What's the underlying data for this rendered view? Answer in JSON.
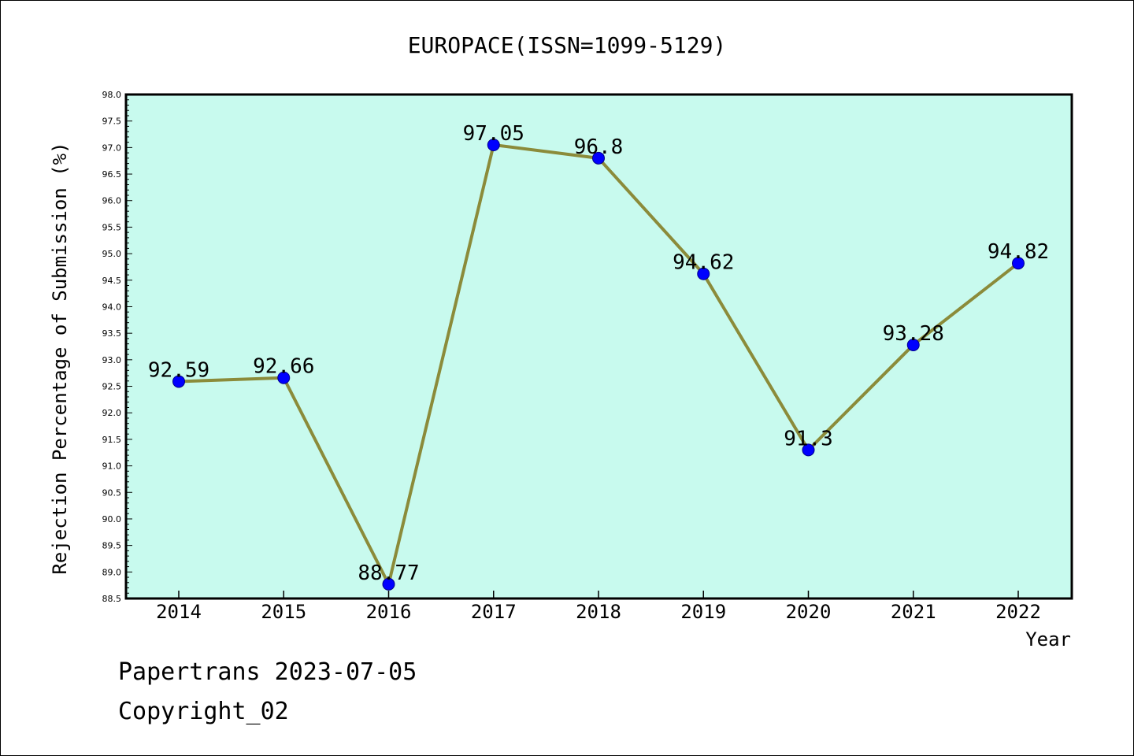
{
  "chart_data": {
    "type": "line",
    "title": "EUROPACE(ISSN=1099-5129)",
    "xlabel": "Year",
    "ylabel": "Rejection Percentage of Submission (%)",
    "categories": [
      "2014",
      "2015",
      "2016",
      "2017",
      "2018",
      "2019",
      "2020",
      "2021",
      "2022"
    ],
    "values": [
      92.59,
      92.66,
      88.77,
      97.05,
      96.8,
      94.62,
      91.3,
      93.28,
      94.82
    ],
    "data_labels": [
      "92.59",
      "92.66",
      "88.77",
      "97.05",
      "96.8",
      "94.62",
      "91.3",
      "93.28",
      "94.82"
    ],
    "ylim": [
      88.5,
      98.0
    ],
    "yticks": [
      "88.5",
      "89.0",
      "89.5",
      "90.0",
      "90.5",
      "91.0",
      "91.5",
      "92.0",
      "92.5",
      "93.0",
      "93.5",
      "94.0",
      "94.5",
      "95.0",
      "95.5",
      "96.0",
      "96.5",
      "97.0",
      "97.5",
      "98.0"
    ],
    "grid": false,
    "colors": {
      "plot_background": "#c8faee",
      "line": "#8b8b3a",
      "marker": "#0000ff"
    }
  },
  "footer": {
    "line1": "Papertrans 2023-07-05",
    "line2": "Copyright_02"
  }
}
